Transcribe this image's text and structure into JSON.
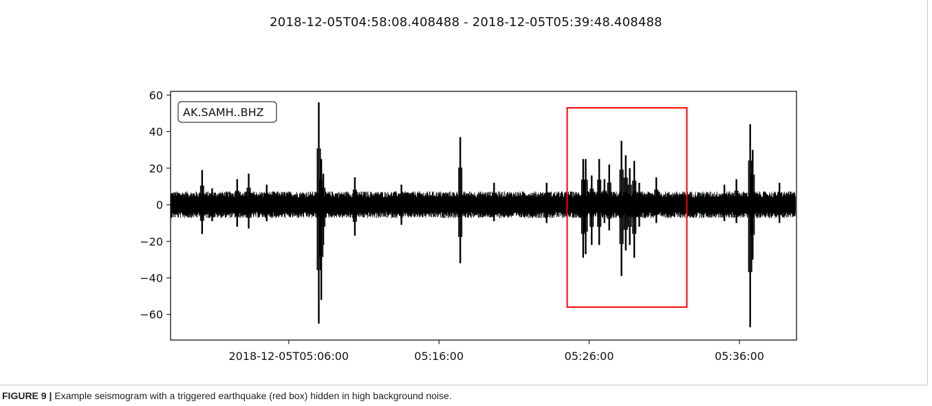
{
  "figure": {
    "title": "2018-12-05T04:58:08.408488  -  2018-12-05T05:39:48.408488",
    "caption_label": "FIGURE 9 |",
    "caption_text": " Example seismogram with a triggered earthquake (red box) hidden in high background noise."
  },
  "colors": {
    "trace": "#000000",
    "highlight": "#ff0000",
    "axes": "#000000"
  },
  "chart_data": {
    "type": "line",
    "title": "2018-12-05T04:58:08.408488  -  2018-12-05T05:39:48.408488",
    "station_label": "AK.SAMH..BHZ",
    "legend_position": "top-left",
    "grid": false,
    "xlabel": "",
    "ylabel": "",
    "x_start": "2018-12-05T04:58:08.408488",
    "x_end": "2018-12-05T05:39:48.408488",
    "xlim": [
      "2018-12-05T04:58:08",
      "2018-12-05T05:39:48"
    ],
    "ylim": [
      -74,
      62
    ],
    "xticks": [
      {
        "time": "2018-12-05T05:06:00",
        "label": "2018-12-05T05:06:00"
      },
      {
        "time": "2018-12-05T05:16:00",
        "label": "05:16:00"
      },
      {
        "time": "2018-12-05T05:26:00",
        "label": "05:26:00"
      },
      {
        "time": "2018-12-05T05:36:00",
        "label": "05:36:00"
      }
    ],
    "yticks": [
      60,
      40,
      20,
      0,
      -20,
      -40,
      -60
    ],
    "ytick_labels": [
      "60",
      "40",
      "20",
      "0",
      "−20",
      "−40",
      "−60"
    ],
    "background_noise_amplitude": 7,
    "spikes": [
      {
        "time": "2018-12-05T05:00:14",
        "max": 19,
        "min": -16
      },
      {
        "time": "2018-12-05T05:00:54",
        "max": 9,
        "min": -9
      },
      {
        "time": "2018-12-05T05:02:34",
        "max": 14,
        "min": -12
      },
      {
        "time": "2018-12-05T05:03:20",
        "max": 17,
        "min": -13
      },
      {
        "time": "2018-12-05T05:04:32",
        "max": 11,
        "min": -9
      },
      {
        "time": "2018-12-05T05:08:00",
        "max": 56,
        "min": -65
      },
      {
        "time": "2018-12-05T05:08:10",
        "max": 25,
        "min": -52
      },
      {
        "time": "2018-12-05T05:08:18",
        "max": 17,
        "min": -22
      },
      {
        "time": "2018-12-05T05:10:24",
        "max": 15,
        "min": -17
      },
      {
        "time": "2018-12-05T05:13:30",
        "max": 11,
        "min": -11
      },
      {
        "time": "2018-12-05T05:17:25",
        "max": 37,
        "min": -32
      },
      {
        "time": "2018-12-05T05:19:40",
        "max": 12,
        "min": -9
      },
      {
        "time": "2018-12-05T05:23:10",
        "max": 12,
        "min": -10
      },
      {
        "time": "2018-12-05T05:25:36",
        "max": 25,
        "min": -29
      },
      {
        "time": "2018-12-05T05:25:46",
        "max": 25,
        "min": -27
      },
      {
        "time": "2018-12-05T05:26:10",
        "max": 16,
        "min": -22
      },
      {
        "time": "2018-12-05T05:26:40",
        "max": 25,
        "min": -22
      },
      {
        "time": "2018-12-05T05:27:01",
        "max": 14,
        "min": -10
      },
      {
        "time": "2018-12-05T05:27:20",
        "max": 22,
        "min": -14
      },
      {
        "time": "2018-12-05T05:28:09",
        "max": 35,
        "min": -39
      },
      {
        "time": "2018-12-05T05:28:26",
        "max": 27,
        "min": -25
      },
      {
        "time": "2018-12-05T05:28:42",
        "max": 20,
        "min": -22
      },
      {
        "time": "2018-12-05T05:29:00",
        "max": 24,
        "min": -29
      },
      {
        "time": "2018-12-05T05:29:20",
        "max": 12,
        "min": -12
      },
      {
        "time": "2018-12-05T05:30:28",
        "max": 15,
        "min": -10
      },
      {
        "time": "2018-12-05T05:35:00",
        "max": 11,
        "min": -9
      },
      {
        "time": "2018-12-05T05:35:48",
        "max": 14,
        "min": -10
      },
      {
        "time": "2018-12-05T05:36:43",
        "max": 44,
        "min": -67
      },
      {
        "time": "2018-12-05T05:36:53",
        "max": 30,
        "min": -30
      },
      {
        "time": "2018-12-05T05:38:40",
        "max": 12,
        "min": -10
      }
    ],
    "highlight_box": {
      "label": "triggered earthquake",
      "x_start": "2018-12-05T05:24:32",
      "x_end": "2018-12-05T05:32:30",
      "y_min": -56,
      "y_max": 53
    }
  }
}
